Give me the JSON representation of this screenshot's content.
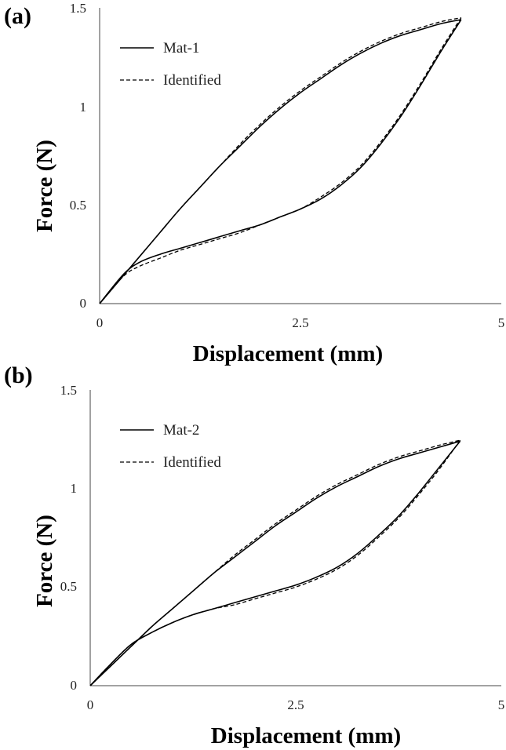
{
  "chart_data": [
    {
      "type": "line",
      "panel_label": "(a)",
      "xlabel": "Displacement (mm)",
      "ylabel": "Force (N)",
      "xlim": [
        0,
        5
      ],
      "ylim": [
        0,
        1.5
      ],
      "x_ticks": [
        "0",
        "2.5",
        "5"
      ],
      "y_ticks": [
        "0",
        "0.5",
        "1",
        "1.5"
      ],
      "grid": false,
      "legend_position": "top-left",
      "series": [
        {
          "name": "Mat-1",
          "style": "solid",
          "loading": [
            [
              0,
              0
            ],
            [
              0.25,
              0.12
            ],
            [
              0.5,
              0.24
            ],
            [
              0.75,
              0.36
            ],
            [
              1.0,
              0.48
            ],
            [
              1.25,
              0.59
            ],
            [
              1.5,
              0.7
            ],
            [
              1.75,
              0.8
            ],
            [
              2.0,
              0.9
            ],
            [
              2.25,
              0.99
            ],
            [
              2.5,
              1.07
            ],
            [
              2.75,
              1.14
            ],
            [
              3.0,
              1.21
            ],
            [
              3.25,
              1.27
            ],
            [
              3.5,
              1.32
            ],
            [
              3.75,
              1.36
            ],
            [
              4.0,
              1.39
            ],
            [
              4.25,
              1.42
            ],
            [
              4.5,
              1.44
            ]
          ],
          "unloading": [
            [
              4.5,
              1.44
            ],
            [
              4.25,
              1.28
            ],
            [
              4.0,
              1.11
            ],
            [
              3.75,
              0.95
            ],
            [
              3.5,
              0.81
            ],
            [
              3.25,
              0.69
            ],
            [
              3.0,
              0.6
            ],
            [
              2.75,
              0.53
            ],
            [
              2.5,
              0.48
            ],
            [
              2.25,
              0.44
            ],
            [
              2.0,
              0.4
            ],
            [
              1.75,
              0.37
            ],
            [
              1.5,
              0.34
            ],
            [
              1.25,
              0.31
            ],
            [
              1.0,
              0.28
            ],
            [
              0.75,
              0.25
            ],
            [
              0.5,
              0.21
            ],
            [
              0.3,
              0.15
            ],
            [
              0,
              0
            ]
          ]
        },
        {
          "name": "Identified",
          "style": "dashed",
          "loading": [
            [
              0,
              0
            ],
            [
              0.25,
              0.12
            ],
            [
              0.5,
              0.24
            ],
            [
              0.75,
              0.36
            ],
            [
              1.0,
              0.48
            ],
            [
              1.25,
              0.59
            ],
            [
              1.5,
              0.7
            ],
            [
              1.75,
              0.81
            ],
            [
              2.0,
              0.91
            ],
            [
              2.25,
              1.0
            ],
            [
              2.5,
              1.08
            ],
            [
              2.75,
              1.15
            ],
            [
              3.0,
              1.22
            ],
            [
              3.25,
              1.28
            ],
            [
              3.5,
              1.33
            ],
            [
              3.75,
              1.37
            ],
            [
              4.0,
              1.4
            ],
            [
              4.25,
              1.43
            ],
            [
              4.5,
              1.45
            ]
          ],
          "unloading": [
            [
              4.5,
              1.45
            ],
            [
              4.25,
              1.29
            ],
            [
              4.0,
              1.12
            ],
            [
              3.75,
              0.96
            ],
            [
              3.5,
              0.82
            ],
            [
              3.25,
              0.7
            ],
            [
              3.0,
              0.61
            ],
            [
              2.75,
              0.54
            ],
            [
              2.5,
              0.48
            ],
            [
              2.25,
              0.44
            ],
            [
              2.0,
              0.4
            ],
            [
              1.75,
              0.36
            ],
            [
              1.5,
              0.33
            ],
            [
              1.25,
              0.3
            ],
            [
              1.0,
              0.27
            ],
            [
              0.75,
              0.23
            ],
            [
              0.5,
              0.19
            ],
            [
              0.3,
              0.14
            ],
            [
              0,
              0
            ]
          ]
        }
      ]
    },
    {
      "type": "line",
      "panel_label": "(b)",
      "xlabel": "Displacement (mm)",
      "ylabel": "Force (N)",
      "xlim": [
        0,
        5
      ],
      "ylim": [
        0,
        1.5
      ],
      "x_ticks": [
        "0",
        "2.5",
        "5"
      ],
      "y_ticks": [
        "0",
        "0.5",
        "1",
        "1.5"
      ],
      "grid": false,
      "legend_position": "top-left",
      "series": [
        {
          "name": "Mat-2",
          "style": "solid",
          "loading": [
            [
              0,
              0
            ],
            [
              0.25,
              0.1
            ],
            [
              0.5,
              0.2
            ],
            [
              0.75,
              0.3
            ],
            [
              1.0,
              0.39
            ],
            [
              1.25,
              0.48
            ],
            [
              1.5,
              0.57
            ],
            [
              1.75,
              0.65
            ],
            [
              2.0,
              0.73
            ],
            [
              2.25,
              0.81
            ],
            [
              2.5,
              0.88
            ],
            [
              2.75,
              0.95
            ],
            [
              3.0,
              1.01
            ],
            [
              3.25,
              1.06
            ],
            [
              3.5,
              1.11
            ],
            [
              3.75,
              1.15
            ],
            [
              4.0,
              1.18
            ],
            [
              4.25,
              1.21
            ],
            [
              4.5,
              1.24
            ]
          ],
          "unloading": [
            [
              4.5,
              1.24
            ],
            [
              4.25,
              1.11
            ],
            [
              4.0,
              0.98
            ],
            [
              3.75,
              0.86
            ],
            [
              3.5,
              0.76
            ],
            [
              3.25,
              0.67
            ],
            [
              3.0,
              0.6
            ],
            [
              2.75,
              0.55
            ],
            [
              2.5,
              0.51
            ],
            [
              2.25,
              0.48
            ],
            [
              2.0,
              0.45
            ],
            [
              1.75,
              0.42
            ],
            [
              1.5,
              0.39
            ],
            [
              1.25,
              0.36
            ],
            [
              1.0,
              0.32
            ],
            [
              0.75,
              0.27
            ],
            [
              0.5,
              0.21
            ],
            [
              0.25,
              0.11
            ],
            [
              0,
              0
            ]
          ]
        },
        {
          "name": "Identified",
          "style": "dashed",
          "loading": [
            [
              0,
              0
            ],
            [
              0.25,
              0.1
            ],
            [
              0.5,
              0.2
            ],
            [
              0.75,
              0.3
            ],
            [
              1.0,
              0.39
            ],
            [
              1.25,
              0.48
            ],
            [
              1.5,
              0.57
            ],
            [
              1.75,
              0.66
            ],
            [
              2.0,
              0.74
            ],
            [
              2.25,
              0.82
            ],
            [
              2.5,
              0.89
            ],
            [
              2.75,
              0.96
            ],
            [
              3.0,
              1.02
            ],
            [
              3.25,
              1.07
            ],
            [
              3.5,
              1.12
            ],
            [
              3.75,
              1.16
            ],
            [
              4.0,
              1.19
            ],
            [
              4.25,
              1.22
            ],
            [
              4.5,
              1.245
            ]
          ],
          "unloading": [
            [
              4.5,
              1.245
            ],
            [
              4.25,
              1.1
            ],
            [
              4.0,
              0.97
            ],
            [
              3.75,
              0.85
            ],
            [
              3.5,
              0.75
            ],
            [
              3.25,
              0.66
            ],
            [
              3.0,
              0.59
            ],
            [
              2.75,
              0.54
            ],
            [
              2.5,
              0.5
            ],
            [
              2.25,
              0.47
            ],
            [
              2.0,
              0.44
            ],
            [
              1.75,
              0.41
            ],
            [
              1.5,
              0.39
            ],
            [
              1.25,
              0.36
            ],
            [
              1.0,
              0.32
            ],
            [
              0.75,
              0.27
            ],
            [
              0.5,
              0.21
            ],
            [
              0.25,
              0.11
            ],
            [
              0,
              0
            ]
          ]
        }
      ]
    }
  ]
}
